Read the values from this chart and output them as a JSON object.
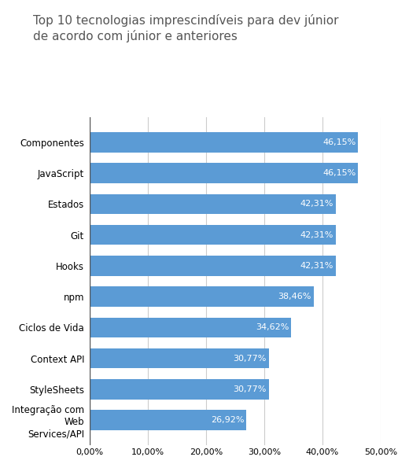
{
  "title": "Top 10 tecnologias imprescindíveis para dev júnior\nde acordo com júnior e anteriores",
  "categories": [
    "Integração com\nWeb\nServices/API",
    "StyleSheets",
    "Context API",
    "Ciclos de Vida",
    "npm",
    "Hooks",
    "Git",
    "Estados",
    "JavaScript",
    "Componentes"
  ],
  "values": [
    26.92,
    30.77,
    30.77,
    34.62,
    38.46,
    42.31,
    42.31,
    42.31,
    46.15,
    46.15
  ],
  "labels": [
    "26,92%",
    "30,77%",
    "30,77%",
    "34,62%",
    "38,46%",
    "42,31%",
    "42,31%",
    "42,31%",
    "46,15%",
    "46,15%"
  ],
  "bar_color": "#5B9BD5",
  "background_color": "#ffffff",
  "title_fontsize": 11,
  "label_fontsize": 8,
  "tick_fontsize": 8,
  "ytick_fontsize": 8.5,
  "xlim": [
    0,
    50
  ],
  "xticks": [
    0,
    10,
    20,
    30,
    40,
    50
  ],
  "xtick_labels": [
    "0,00%",
    "10,00%",
    "20,00%",
    "30,00%",
    "40,00%",
    "50,00%"
  ],
  "title_color": "#555555",
  "grid_color": "#cccccc",
  "axvline_color": "#555555"
}
